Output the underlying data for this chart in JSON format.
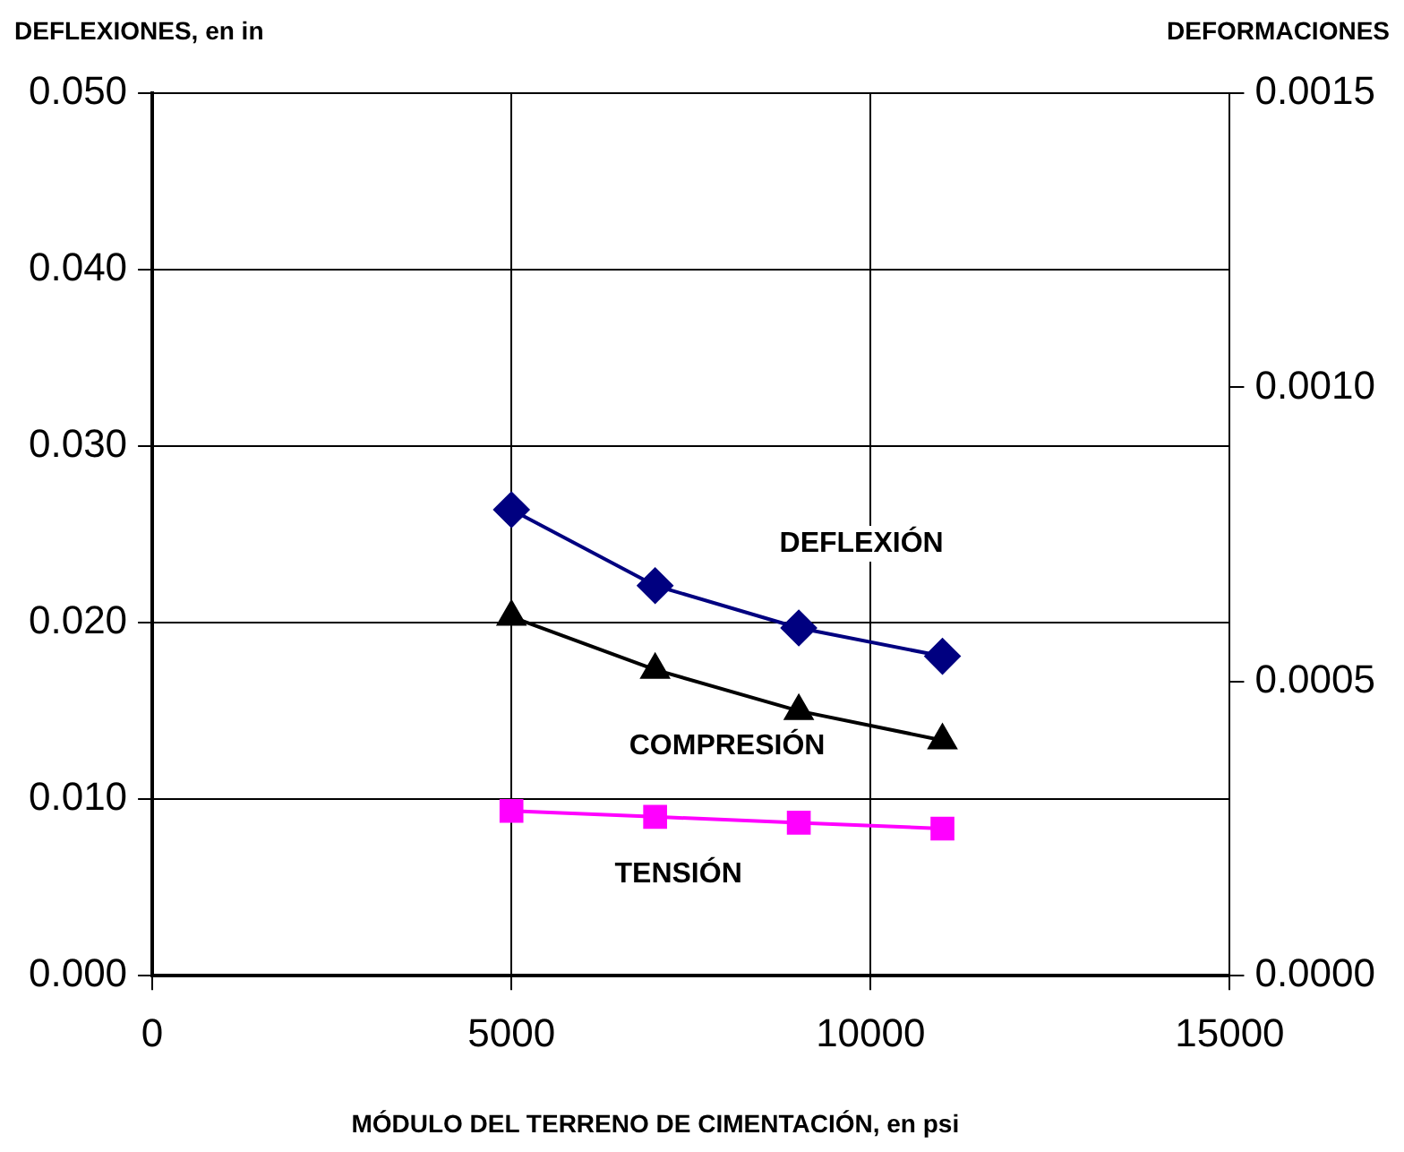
{
  "chart_data": {
    "type": "line",
    "ylabel": "DEFLEXIONES, en in",
    "y2label": "DEFORMACIONES",
    "xlabel": "MÓDULO DEL TERRENO DE CIMENTACIÓN, en psi",
    "x": [
      5000,
      7000,
      9000,
      11000
    ],
    "xlim": [
      0,
      15000
    ],
    "xticks": [
      0,
      5000,
      10000,
      15000
    ],
    "ylim": [
      0,
      0.05
    ],
    "yticks": [
      {
        "value": 0,
        "label": "0.000"
      },
      {
        "value": 0.01,
        "label": "0.010"
      },
      {
        "value": 0.02,
        "label": "0.020"
      },
      {
        "value": 0.03,
        "label": "0.030"
      },
      {
        "value": 0.04,
        "label": "0.040"
      },
      {
        "value": 0.05,
        "label": "0.050"
      }
    ],
    "y2lim": [
      0,
      0.0015
    ],
    "y2ticks": [
      {
        "value": 0,
        "label": "0.0000"
      },
      {
        "value": 0.0005,
        "label": "0.0005"
      },
      {
        "value": 0.001,
        "label": "0.0010"
      },
      {
        "value": 0.0015,
        "label": "0.0015"
      }
    ],
    "grid": true,
    "legend": false,
    "series": [
      {
        "name": "DEFLEXIÓN",
        "color": "#000080",
        "marker": "diamond",
        "values": [
          0.0264,
          0.0221,
          0.0197,
          0.0181
        ]
      },
      {
        "name": "COMPRESIÓN",
        "color": "#000000",
        "marker": "triangle",
        "axis": "y2",
        "values": [
          0.00061,
          0.00052,
          0.00045,
          0.0004
        ]
      },
      {
        "name": "TENSIÓN",
        "color": "#ff00ff",
        "marker": "square",
        "axis": "y2",
        "values": [
          0.00028,
          0.00027,
          0.00026,
          0.00025
        ]
      }
    ]
  }
}
